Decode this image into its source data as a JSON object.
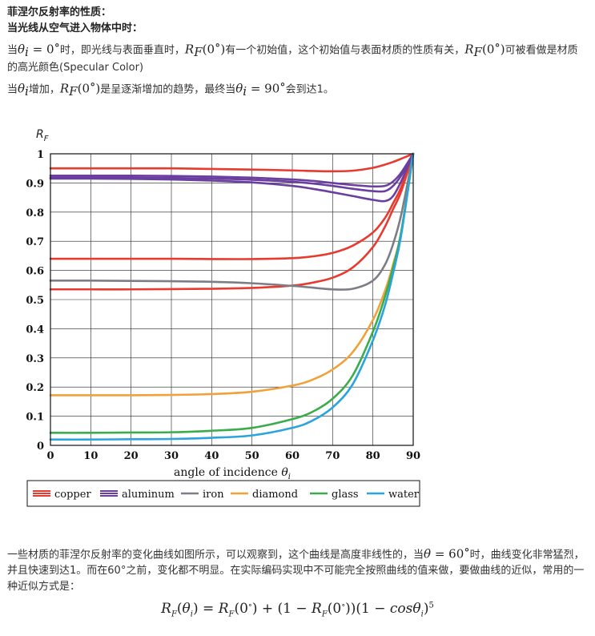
{
  "intro": {
    "title": "菲涅尔反射率的性质：",
    "subtitle": "当光线从空气进入物体中时：",
    "line1_a": "当",
    "line1_theta": "θ",
    "line1_sub": "i",
    "line1_eq": " = 0",
    "line1_deg": "∘",
    "line1_b": "时，即光线与表面垂直时，",
    "rf_R": "R",
    "rf_sub": "F",
    "rf_arg": "(0",
    "rf_deg": "∘",
    "rf_close": ")",
    "line1_c": "有一个初始值，这个初始值与表面材质的性质有关，",
    "line1_d": "可被看做是材质的高光颜色(Specular Color)",
    "line2_a": "当",
    "line2_b": "增加，",
    "line2_c": "是呈逐渐增加的趋势，最终当",
    "line2_eq": " = 90",
    "line2_d": "会到达1。"
  },
  "chart_data": {
    "type": "line",
    "ylabel_R": "R",
    "ylabel_sub": "F",
    "xlabel": "angle of incidence ",
    "xlabel_theta": "θ",
    "xlabel_sub": "i",
    "xlim": [
      0,
      90
    ],
    "ylim": [
      0,
      1
    ],
    "xticks": [
      0,
      10,
      20,
      30,
      40,
      50,
      60,
      70,
      80,
      90
    ],
    "yticks": [
      0,
      0.1,
      0.2,
      0.3,
      0.4,
      0.5,
      0.6,
      0.7,
      0.8,
      0.9,
      1
    ],
    "ytick_labels": [
      "0",
      "0.1",
      "0.2",
      "0.3",
      "0.4",
      "0.5",
      "0.6",
      "0.7",
      "0.8",
      "0.9",
      "1"
    ],
    "x": [
      0,
      10,
      20,
      30,
      40,
      50,
      60,
      65,
      70,
      75,
      80,
      83,
      85,
      87,
      90
    ],
    "series": [
      {
        "name": "copper",
        "color": "#e63b2e",
        "values": [
          0.95,
          0.95,
          0.95,
          0.95,
          0.948,
          0.946,
          0.943,
          0.941,
          0.94,
          0.942,
          0.952,
          0.963,
          0.972,
          0.983,
          1
        ]
      },
      {
        "name": "copper",
        "color": "#e63b2e",
        "values": [
          0.64,
          0.64,
          0.64,
          0.64,
          0.639,
          0.639,
          0.642,
          0.648,
          0.66,
          0.685,
          0.73,
          0.78,
          0.83,
          0.885,
          1
        ]
      },
      {
        "name": "copper",
        "color": "#e63b2e",
        "values": [
          0.535,
          0.535,
          0.535,
          0.536,
          0.537,
          0.54,
          0.548,
          0.558,
          0.575,
          0.61,
          0.68,
          0.75,
          0.81,
          0.87,
          1
        ]
      },
      {
        "name": "aluminum",
        "color": "#6a3fa0",
        "values": [
          0.925,
          0.925,
          0.925,
          0.924,
          0.922,
          0.918,
          0.912,
          0.907,
          0.9,
          0.893,
          0.888,
          0.89,
          0.905,
          0.935,
          1
        ]
      },
      {
        "name": "aluminum",
        "color": "#6a3fa0",
        "values": [
          0.918,
          0.918,
          0.918,
          0.917,
          0.915,
          0.911,
          0.904,
          0.898,
          0.89,
          0.88,
          0.872,
          0.872,
          0.89,
          0.925,
          1
        ]
      },
      {
        "name": "aluminum",
        "color": "#6a3fa0",
        "values": [
          0.915,
          0.915,
          0.914,
          0.912,
          0.908,
          0.902,
          0.89,
          0.88,
          0.868,
          0.855,
          0.842,
          0.838,
          0.855,
          0.905,
          1
        ]
      },
      {
        "name": "iron",
        "color": "#7d7d85",
        "values": [
          0.565,
          0.565,
          0.564,
          0.563,
          0.561,
          0.556,
          0.547,
          0.541,
          0.535,
          0.537,
          0.565,
          0.62,
          0.69,
          0.79,
          1
        ]
      },
      {
        "name": "diamond",
        "color": "#f0a13a",
        "values": [
          0.172,
          0.172,
          0.172,
          0.173,
          0.176,
          0.184,
          0.205,
          0.225,
          0.26,
          0.32,
          0.43,
          0.53,
          0.62,
          0.73,
          1
        ]
      },
      {
        "name": "glass",
        "color": "#3aac4a",
        "values": [
          0.043,
          0.043,
          0.044,
          0.045,
          0.05,
          0.06,
          0.09,
          0.115,
          0.16,
          0.24,
          0.39,
          0.51,
          0.61,
          0.73,
          1
        ]
      },
      {
        "name": "water",
        "color": "#2aa4dc",
        "values": [
          0.02,
          0.02,
          0.021,
          0.022,
          0.026,
          0.034,
          0.06,
          0.085,
          0.13,
          0.21,
          0.36,
          0.48,
          0.59,
          0.72,
          1
        ]
      }
    ],
    "legend": {
      "placement": "bottom",
      "entries": [
        {
          "name": "copper",
          "color": "#e63b2e",
          "style": "triple"
        },
        {
          "name": "aluminum",
          "color": "#6a3fa0",
          "style": "triple"
        },
        {
          "name": "iron",
          "color": "#7d7d85",
          "style": "single"
        },
        {
          "name": "diamond",
          "color": "#f0a13a",
          "style": "single"
        },
        {
          "name": "glass",
          "color": "#3aac4a",
          "style": "single"
        },
        {
          "name": "water",
          "color": "#2aa4dc",
          "style": "single"
        }
      ]
    }
  },
  "outro": {
    "text_a": "一些材质的菲涅尔反射率的变化曲线如图所示，可以观察到，这个曲线是高度非线性的，当",
    "theta": "θ",
    "eq": " = 60",
    "deg": "∘",
    "text_b": "时，曲线变化非常猛烈，并且快速到达1。而在60°之前，变化都不明显。在实际编码实现中不可能完全按照曲线的值来做，要做曲线的近似，常用的一种近似方式是："
  },
  "formula": {
    "lhs_R": "R",
    "lhs_sub": "F",
    "lhs_open": "(",
    "lhs_theta": "θ",
    "lhs_theta_sub": "i",
    "lhs_close": ") = ",
    "r1_R": "R",
    "r1_sub": "F",
    "r1_arg": "(0",
    "r1_deg": "∘",
    "r1_close": ") + (1 − ",
    "r2_R": "R",
    "r2_sub": "F",
    "r2_arg": "(0",
    "r2_deg": "∘",
    "r2_close": "))(1 − ",
    "cos": "cos",
    "cos_theta": "θ",
    "cos_sub": "i",
    "cos_close": ")",
    "exp": "5"
  }
}
